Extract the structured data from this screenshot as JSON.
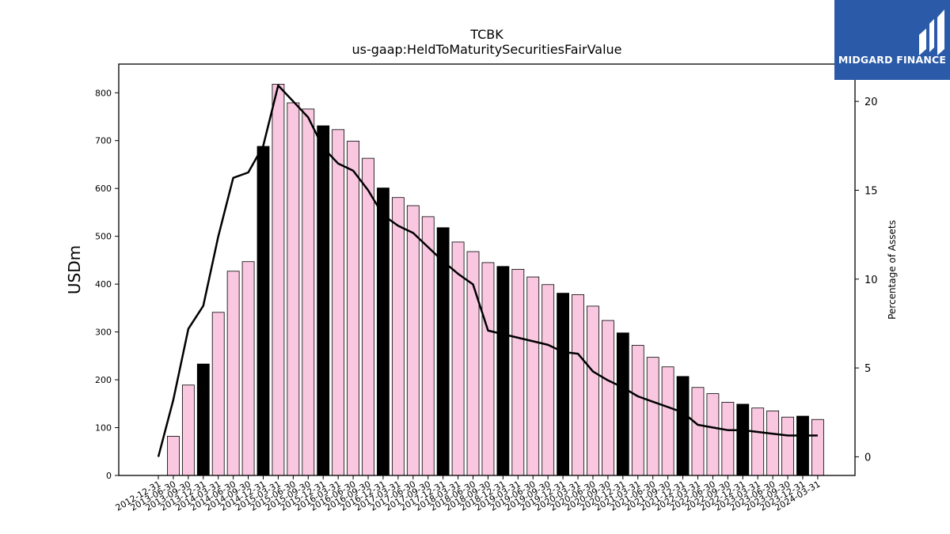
{
  "chart_data": {
    "type": "bar",
    "title": "TCBK",
    "subtitle": "us-gaap:HeldToMaturitySecuritiesFairValue",
    "ylabel": "USDm",
    "y2label": "Percentage of Assets",
    "ylim": [
      0,
      860
    ],
    "y2lim": [
      -1.05,
      22.1
    ],
    "yticks": [
      0,
      100,
      200,
      300,
      400,
      500,
      600,
      700,
      800
    ],
    "y2ticks": [
      0,
      5,
      10,
      15,
      20
    ],
    "grid": false,
    "categories": [
      "2012-12-31",
      "2013-06-30",
      "2013-09-30",
      "2013-12-31",
      "2014-03-31",
      "2014-06-30",
      "2014-09-30",
      "2014-12-31",
      "2015-03-31",
      "2015-06-30",
      "2015-09-30",
      "2015-12-31",
      "2016-03-31",
      "2016-06-30",
      "2016-09-30",
      "2016-12-31",
      "2017-03-31",
      "2017-06-30",
      "2017-09-30",
      "2017-12-31",
      "2018-03-31",
      "2018-06-30",
      "2018-09-30",
      "2018-12-31",
      "2019-03-31",
      "2019-06-30",
      "2019-09-30",
      "2019-12-31",
      "2020-03-31",
      "2020-06-30",
      "2020-09-30",
      "2020-12-31",
      "2021-03-31",
      "2021-06-30",
      "2021-09-30",
      "2021-12-31",
      "2022-03-31",
      "2022-06-30",
      "2022-09-30",
      "2022-12-31",
      "2023-03-31",
      "2023-06-30",
      "2023-09-30",
      "2023-12-31",
      "2024-03-31"
    ],
    "series": [
      {
        "type": "bar",
        "values": [
          null,
          82,
          189,
          233,
          341,
          427,
          447,
          688,
          818,
          779,
          766,
          731,
          723,
          699,
          663,
          601,
          581,
          564,
          541,
          518,
          488,
          468,
          445,
          437,
          431,
          415,
          399,
          381,
          378,
          354,
          324,
          298,
          272,
          247,
          227,
          207,
          184,
          171,
          153,
          149,
          141,
          135,
          122,
          124,
          117
        ],
        "colors": [
          "#f9c8e0",
          "#f9c8e0",
          "#f9c8e0",
          "#000000",
          "#f9c8e0",
          "#f9c8e0",
          "#f9c8e0",
          "#000000",
          "#f9c8e0",
          "#f9c8e0",
          "#f9c8e0",
          "#000000",
          "#f9c8e0",
          "#f9c8e0",
          "#f9c8e0",
          "#000000",
          "#f9c8e0",
          "#f9c8e0",
          "#f9c8e0",
          "#000000",
          "#f9c8e0",
          "#f9c8e0",
          "#f9c8e0",
          "#000000",
          "#f9c8e0",
          "#f9c8e0",
          "#f9c8e0",
          "#000000",
          "#f9c8e0",
          "#f9c8e0",
          "#f9c8e0",
          "#000000",
          "#f9c8e0",
          "#f9c8e0",
          "#f9c8e0",
          "#000000",
          "#f9c8e0",
          "#f9c8e0",
          "#f9c8e0",
          "#000000",
          "#f9c8e0",
          "#f9c8e0",
          "#f9c8e0",
          "#000000",
          "#f9c8e0"
        ]
      },
      {
        "type": "line",
        "axis": "right",
        "color": "#000000",
        "values": [
          0.0,
          3.2,
          7.2,
          8.5,
          12.4,
          15.7,
          16.0,
          17.5,
          20.9,
          20.0,
          19.1,
          17.4,
          16.5,
          16.1,
          15.0,
          13.6,
          13.0,
          12.6,
          11.8,
          11.0,
          10.3,
          9.7,
          7.1,
          6.9,
          6.7,
          6.5,
          6.3,
          5.9,
          5.8,
          4.8,
          4.3,
          3.9,
          3.4,
          3.1,
          2.8,
          2.5,
          1.8,
          1.65,
          1.5,
          1.5,
          1.4,
          1.3,
          1.2,
          1.2,
          1.2
        ]
      }
    ]
  },
  "branding": {
    "logo_text": "MIDGARD FINANCE",
    "logo_color": "#2b5aa8"
  }
}
